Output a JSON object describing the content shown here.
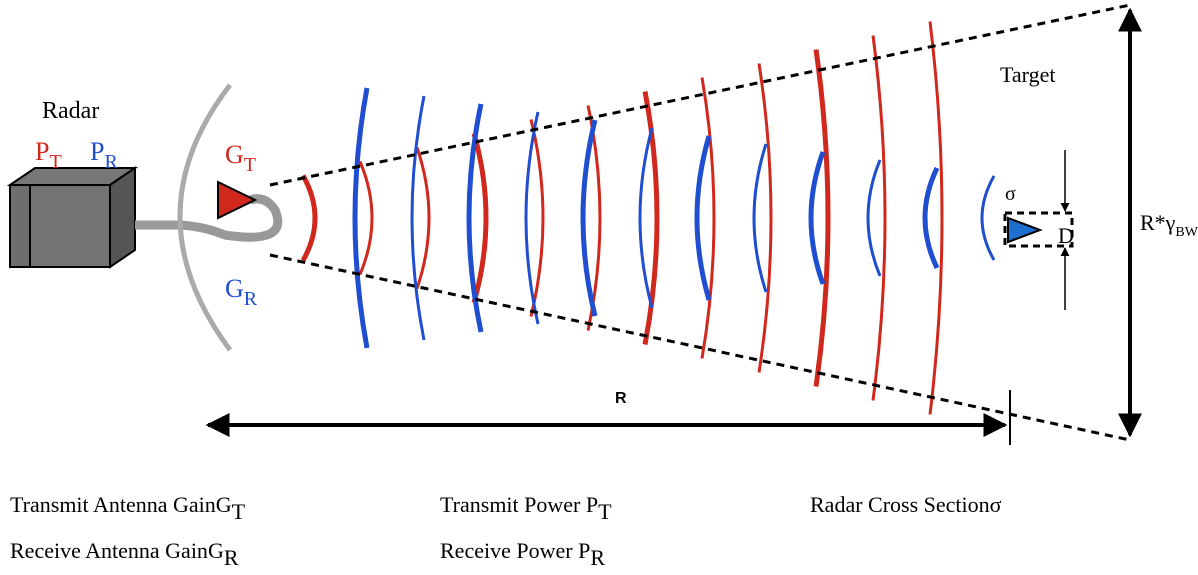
{
  "radar": {
    "label": "Radar",
    "pt": {
      "base": "P",
      "sub": "T"
    },
    "pr": {
      "base": "P",
      "sub": "R"
    }
  },
  "antenna": {
    "gt": {
      "base": "G",
      "sub": "T"
    },
    "gr": {
      "base": "G",
      "sub": "R"
    }
  },
  "target": {
    "label": "Target",
    "sigma": "σ",
    "d": "D"
  },
  "beam_width": {
    "base": "R*γ",
    "sub": "BW"
  },
  "range": "R",
  "legend": [
    {
      "text": "Transmit Antenna Gain",
      "base": "G",
      "sub": "T"
    },
    {
      "text": "Receive Antenna Gain",
      "base": "G",
      "sub": "R"
    },
    {
      "text": "Transmit Power ",
      "base": "P",
      "sub": "T"
    },
    {
      "text": "Receive Power ",
      "base": "P",
      "sub": "R"
    },
    {
      "text": "Radar Cross Section",
      "base": "σ"
    }
  ]
}
